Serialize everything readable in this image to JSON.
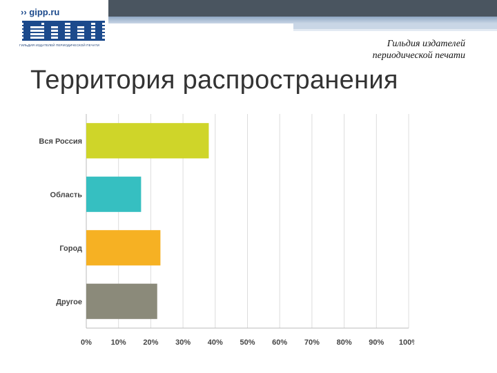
{
  "header": {
    "site": "›› gipp.ru",
    "logo_caption": "ГИЛЬДИЯ ИЗДАТЕЛЕЙ ПЕРИОДИЧЕСКОЙ ПЕЧАТИ",
    "guild_line1": "Гильдия издателей",
    "guild_line2": "периодической печати"
  },
  "title": "Территория распространения",
  "colors": {
    "band": "#4a5560",
    "logo": "#1c4a8c"
  },
  "chart_data": {
    "type": "bar",
    "orientation": "horizontal",
    "categories": [
      "Вся Россия",
      "Область",
      "Город",
      "Другое"
    ],
    "values": [
      38,
      17,
      23,
      22
    ],
    "colors": [
      "#cfd529",
      "#36bfc1",
      "#f6b123",
      "#8b8a7a"
    ],
    "xlim": [
      0,
      100
    ],
    "ticks": [
      "0%",
      "10%",
      "20%",
      "30%",
      "40%",
      "50%",
      "60%",
      "70%",
      "80%",
      "90%",
      "100%"
    ],
    "grid": true,
    "unit": "%"
  }
}
